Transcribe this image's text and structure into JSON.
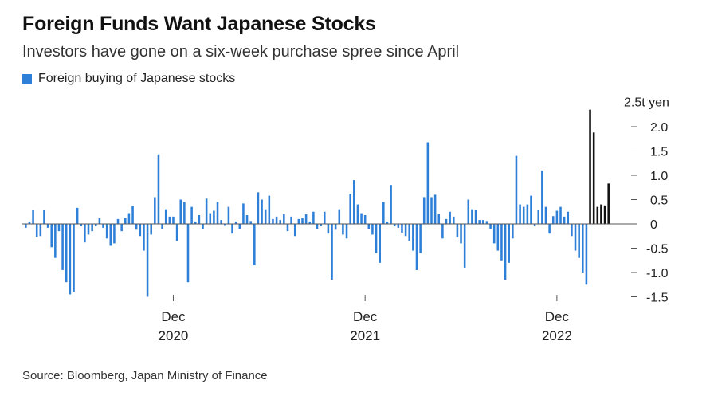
{
  "title": "Foreign Funds Want Japanese Stocks",
  "subtitle": "Investors have gone on a six-week purchase spree since April",
  "source": "Source: Bloomberg, Japan Ministry of Finance",
  "colors": {
    "blue": "#2d7fd8",
    "black": "#111111",
    "axis": "#999999"
  },
  "chart_data": {
    "type": "bar",
    "title": "Foreign Funds Want Japanese Stocks",
    "subtitle": "Investors have gone on a six-week purchase spree since April",
    "legend": [
      {
        "name": "Foreign buying of Japanese stocks",
        "color": "#2d7fd8"
      }
    ],
    "ylabel": "",
    "y_unit_label": "2.5t yen",
    "ylim": [
      -1.5,
      2.5
    ],
    "y_ticks": [
      {
        "value": 2.0,
        "label": "2.0"
      },
      {
        "value": 1.5,
        "label": "1.5"
      },
      {
        "value": 1.0,
        "label": "1.0"
      },
      {
        "value": 0.5,
        "label": "0.5"
      },
      {
        "value": 0,
        "label": "0"
      },
      {
        "value": -0.5,
        "label": "-0.5"
      },
      {
        "value": -1.0,
        "label": "-1.0"
      },
      {
        "value": -1.5,
        "label": "-1.5"
      }
    ],
    "x_ticks": [
      {
        "week_index": 40,
        "month": "Dec",
        "year": "2020"
      },
      {
        "week_index": 92,
        "month": "Dec",
        "year": "2021"
      },
      {
        "week_index": 144,
        "month": "Dec",
        "year": "2022"
      }
    ],
    "x_unit": "weekly, ~Jan 2020 to May 2023",
    "values": [
      -0.08,
      0.05,
      0.28,
      -0.27,
      -0.25,
      0.28,
      -0.08,
      -0.48,
      -0.7,
      -0.15,
      -0.95,
      -1.2,
      -1.45,
      -1.4,
      0.33,
      -0.05,
      -0.38,
      -0.22,
      -0.15,
      -0.05,
      0.12,
      -0.08,
      -0.3,
      -0.45,
      -0.4,
      0.1,
      -0.15,
      0.12,
      0.22,
      0.37,
      -0.12,
      -0.25,
      -0.55,
      -1.5,
      -0.22,
      0.55,
      1.43,
      -0.1,
      0.3,
      0.15,
      0.15,
      -0.35,
      0.5,
      0.45,
      -1.2,
      0.35,
      0.05,
      0.18,
      -0.1,
      0.52,
      0.22,
      0.27,
      0.45,
      0.08,
      -0.04,
      0.35,
      -0.2,
      0.05,
      -0.1,
      0.42,
      0.18,
      0.06,
      -0.85,
      0.65,
      0.5,
      0.3,
      0.58,
      0.1,
      0.15,
      0.08,
      0.2,
      -0.15,
      0.15,
      -0.25,
      0.1,
      0.12,
      0.2,
      0.05,
      0.25,
      -0.1,
      -0.05,
      0.25,
      -0.2,
      -1.15,
      -0.12,
      0.3,
      -0.22,
      -0.3,
      0.62,
      0.9,
      0.4,
      0.22,
      0.18,
      -0.1,
      -0.22,
      -0.6,
      -0.8,
      0.45,
      0.05,
      0.8,
      -0.05,
      -0.08,
      -0.18,
      -0.25,
      -0.35,
      -0.55,
      -0.95,
      -0.6,
      0.55,
      1.68,
      0.55,
      0.6,
      0.2,
      -0.3,
      0.1,
      0.25,
      0.15,
      -0.28,
      -0.4,
      -0.9,
      0.5,
      0.3,
      0.28,
      0.08,
      0.08,
      0.06,
      -0.1,
      -0.4,
      -0.55,
      -0.75,
      -1.15,
      -0.8,
      -0.3,
      1.4,
      0.4,
      0.35,
      0.4,
      0.58,
      -0.05,
      0.28,
      1.1,
      0.35,
      -0.2,
      0.16,
      0.27,
      0.35,
      0.15,
      0.25,
      -0.25,
      -0.55,
      -0.7,
      -1.0,
      -1.25,
      2.35,
      1.88,
      0.35,
      0.4,
      0.38,
      0.83
    ],
    "highlight_last_n": 6
  }
}
